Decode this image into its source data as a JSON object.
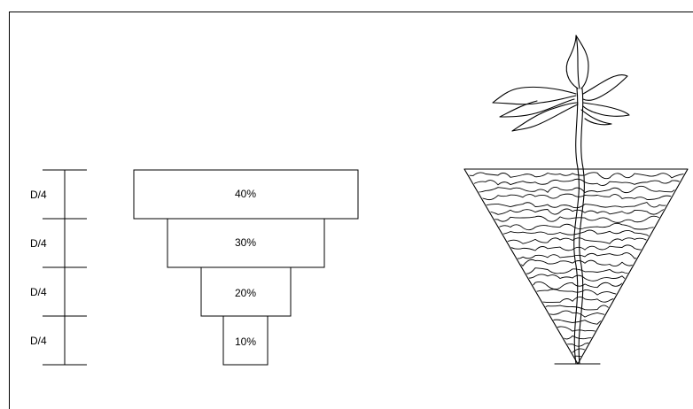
{
  "depth_scale": {
    "segments": [
      {
        "label": "D/4"
      },
      {
        "label": "D/4"
      },
      {
        "label": "D/4"
      },
      {
        "label": "D/4"
      }
    ]
  },
  "distribution": {
    "levels": [
      {
        "label": "40%",
        "value": 40
      },
      {
        "label": "30%",
        "value": 30
      },
      {
        "label": "20%",
        "value": 20
      },
      {
        "label": "10%",
        "value": 10
      }
    ]
  },
  "illustration": {
    "icon": "plant-root-cone-icon"
  }
}
